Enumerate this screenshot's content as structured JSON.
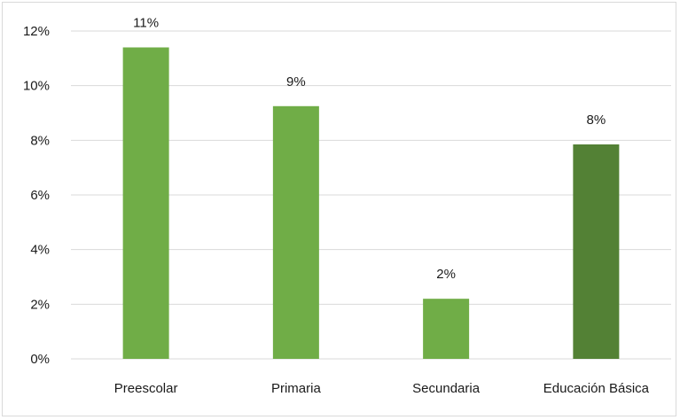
{
  "chart_data": {
    "type": "bar",
    "title": "",
    "xlabel": "",
    "ylabel": "",
    "categories": [
      "Preescolar",
      "Primaria",
      "Secundaria",
      "Educación Básica"
    ],
    "values": [
      11.4,
      9.25,
      2.2,
      7.85
    ],
    "data_labels": [
      "11%",
      "9%",
      "2%",
      "8%"
    ],
    "ylim": [
      0,
      12
    ],
    "yticks": [
      0,
      2,
      4,
      6,
      8,
      10,
      12
    ],
    "ytick_labels": [
      "0%",
      "2%",
      "4%",
      "6%",
      "8%",
      "10%",
      "12%"
    ],
    "grid": true,
    "legend": "none",
    "colors": {
      "bar": "#70ad47",
      "highlight_bar": "#538135",
      "gridline": "#d9d9d9",
      "text": "#1a1a1a"
    },
    "highlight_index": 3
  }
}
